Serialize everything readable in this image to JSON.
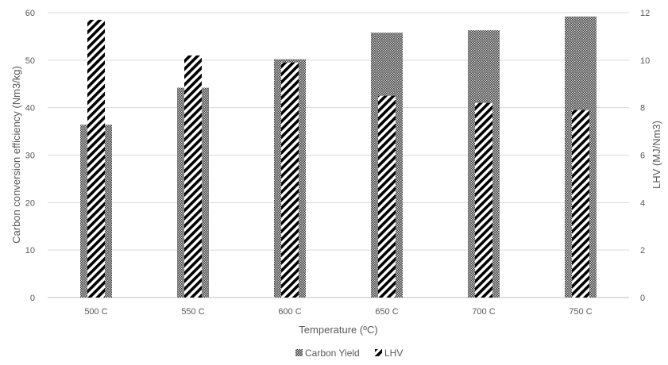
{
  "chart_data": {
    "type": "bar",
    "title": "",
    "xlabel": "Temperature (ºC)",
    "ylabel_left": "Carbon conversion efficiency (Nm3/kg)",
    "ylabel_right": "LHV (MJ/Nm3)",
    "categories": [
      "500 C",
      "550 C",
      "600 C",
      "650 C",
      "700 C",
      "750 C"
    ],
    "ylim_left": [
      0,
      60
    ],
    "yticks_left": [
      0,
      10,
      20,
      30,
      40,
      50,
      60
    ],
    "ylim_right": [
      0,
      12
    ],
    "yticks_right": [
      0,
      2,
      4,
      6,
      8,
      10,
      12
    ],
    "grid": true,
    "legend_position": "bottom",
    "series": [
      {
        "name": "Carbon Yield",
        "axis": "left",
        "pattern": "dense-dots",
        "values": [
          36.4,
          44.2,
          50.2,
          55.8,
          56.3,
          59.2
        ]
      },
      {
        "name": "LHV",
        "axis": "right",
        "pattern": "diagonal-stripes",
        "values": [
          11.7,
          10.2,
          9.9,
          8.5,
          8.2,
          7.9
        ]
      }
    ],
    "colors": {
      "bar_dark": "#3a3a3a",
      "grid": "#d9d9d9",
      "text": "#595959"
    }
  }
}
